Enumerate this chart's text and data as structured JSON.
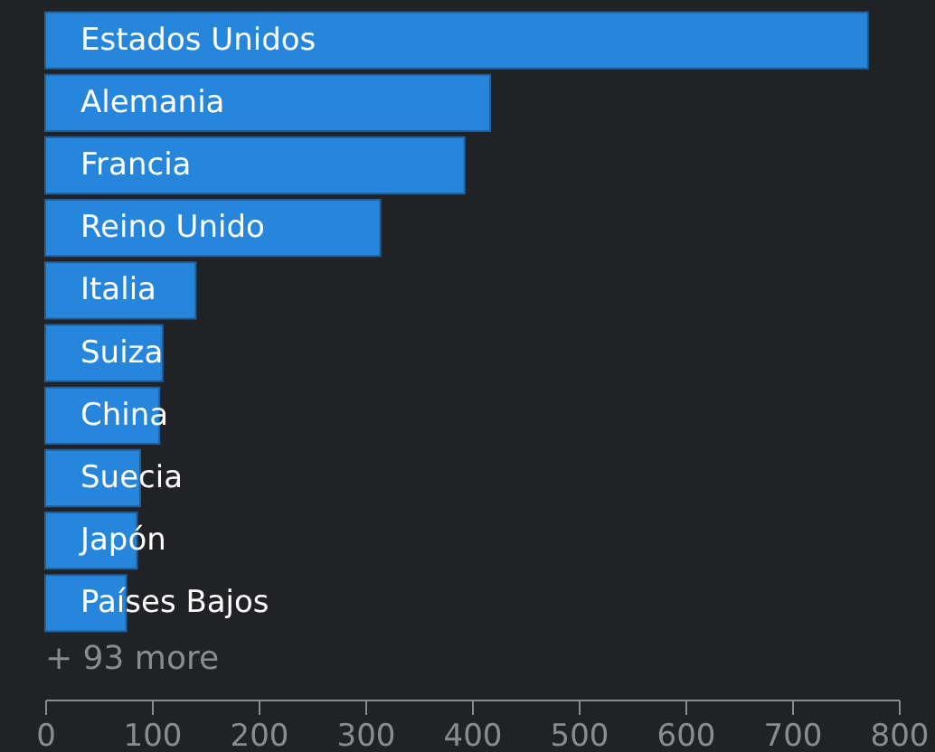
{
  "chart_data": {
    "type": "bar",
    "orientation": "horizontal",
    "categories": [
      "Estados Unidos",
      "Alemania",
      "Francia",
      "Reino Unido",
      "Italia",
      "Suiza",
      "China",
      "Suecia",
      "Japón",
      "Países Bajos"
    ],
    "values": [
      771,
      417,
      393,
      314,
      141,
      110,
      107,
      89,
      86,
      76
    ],
    "color": "#2686dc",
    "xlim": [
      0,
      800
    ],
    "xticks": [
      0,
      100,
      200,
      300,
      400,
      500,
      600,
      700,
      800
    ],
    "grid": false,
    "annotations": [
      "+ 93 more"
    ]
  }
}
